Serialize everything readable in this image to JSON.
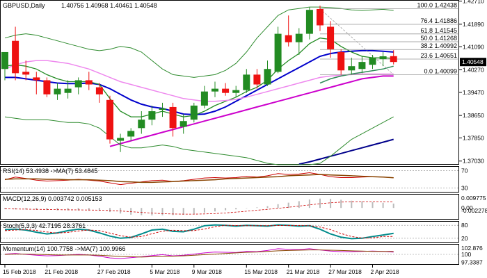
{
  "chart_data": {
    "type": "candlestick",
    "symbol_label": "GBPUSD,Daily",
    "ohlc_label": "1.40756 1.40968 1.40461 1.40548",
    "price_ylim": [
      1.369,
      1.4275
    ],
    "price_ticks": [
      "1.42710",
      "1.41890",
      "1.41090",
      "1.40270",
      "1.39470",
      "1.38650",
      "1.37850",
      "1.37030"
    ],
    "current_price": "1.40548",
    "date_labels": [
      {
        "label": "15 Feb 2018",
        "index": 0
      },
      {
        "label": "21 Feb 2018",
        "index": 4
      },
      {
        "label": "27 Feb 2018",
        "index": 9
      },
      {
        "label": "5 Mar 2018",
        "index": 14
      },
      {
        "label": "9 Mar 2018",
        "index": 18
      },
      {
        "label": "15 Mar 2018",
        "index": 23
      },
      {
        "label": "21 Mar 2018",
        "index": 27
      },
      {
        "label": "27 Mar 2018",
        "index": 31
      },
      {
        "label": "2 Apr 2018",
        "index": 35
      }
    ],
    "candles": [
      {
        "o": 1.403,
        "h": 1.409,
        "l": 1.399,
        "c": 1.409
      },
      {
        "o": 1.413,
        "h": 1.418,
        "l": 1.399,
        "c": 1.4015
      },
      {
        "o": 1.402,
        "h": 1.406,
        "l": 1.399,
        "c": 1.401
      },
      {
        "o": 1.4,
        "h": 1.402,
        "l": 1.394,
        "c": 1.399
      },
      {
        "o": 1.399,
        "h": 1.4,
        "l": 1.393,
        "c": 1.394
      },
      {
        "o": 1.394,
        "h": 1.398,
        "l": 1.392,
        "c": 1.396
      },
      {
        "o": 1.3945,
        "h": 1.399,
        "l": 1.3925,
        "c": 1.396
      },
      {
        "o": 1.3965,
        "h": 1.4,
        "l": 1.394,
        "c": 1.399
      },
      {
        "o": 1.399,
        "h": 1.402,
        "l": 1.3955,
        "c": 1.3975
      },
      {
        "o": 1.3965,
        "h": 1.398,
        "l": 1.391,
        "c": 1.394
      },
      {
        "o": 1.392,
        "h": 1.3935,
        "l": 1.3765,
        "c": 1.378
      },
      {
        "o": 1.3775,
        "h": 1.38,
        "l": 1.3735,
        "c": 1.3785
      },
      {
        "o": 1.379,
        "h": 1.382,
        "l": 1.3775,
        "c": 1.381
      },
      {
        "o": 1.382,
        "h": 1.388,
        "l": 1.38,
        "c": 1.385
      },
      {
        "o": 1.385,
        "h": 1.39,
        "l": 1.383,
        "c": 1.388
      },
      {
        "o": 1.3885,
        "h": 1.391,
        "l": 1.386,
        "c": 1.389
      },
      {
        "o": 1.3895,
        "h": 1.391,
        "l": 1.379,
        "c": 1.382
      },
      {
        "o": 1.3825,
        "h": 1.387,
        "l": 1.38,
        "c": 1.3845
      },
      {
        "o": 1.385,
        "h": 1.391,
        "l": 1.384,
        "c": 1.39
      },
      {
        "o": 1.39,
        "h": 1.397,
        "l": 1.389,
        "c": 1.395
      },
      {
        "o": 1.395,
        "h": 1.3985,
        "l": 1.393,
        "c": 1.396
      },
      {
        "o": 1.396,
        "h": 1.398,
        "l": 1.3935,
        "c": 1.3945
      },
      {
        "o": 1.3945,
        "h": 1.397,
        "l": 1.393,
        "c": 1.3955
      },
      {
        "o": 1.3955,
        "h": 1.403,
        "l": 1.3945,
        "c": 1.401
      },
      {
        "o": 1.401,
        "h": 1.403,
        "l": 1.396,
        "c": 1.3975
      },
      {
        "o": 1.3975,
        "h": 1.406,
        "l": 1.397,
        "c": 1.403
      },
      {
        "o": 1.402,
        "h": 1.418,
        "l": 1.4015,
        "c": 1.4155
      },
      {
        "o": 1.415,
        "h": 1.422,
        "l": 1.411,
        "c": 1.4125
      },
      {
        "o": 1.4125,
        "h": 1.4175,
        "l": 1.408,
        "c": 1.4155
      },
      {
        "o": 1.4155,
        "h": 1.425,
        "l": 1.4135,
        "c": 1.424
      },
      {
        "o": 1.4243,
        "h": 1.4255,
        "l": 1.4165,
        "c": 1.4185
      },
      {
        "o": 1.418,
        "h": 1.42,
        "l": 1.407,
        "c": 1.41
      },
      {
        "o": 1.409,
        "h": 1.41,
        "l": 1.401,
        "c": 1.4025
      },
      {
        "o": 1.4025,
        "h": 1.407,
        "l": 1.401,
        "c": 1.404
      },
      {
        "o": 1.403,
        "h": 1.4075,
        "l": 1.4015,
        "c": 1.4055
      },
      {
        "o": 1.4045,
        "h": 1.408,
        "l": 1.403,
        "c": 1.407
      },
      {
        "o": 1.4065,
        "h": 1.409,
        "l": 1.404,
        "c": 1.4075
      },
      {
        "o": 1.40756,
        "h": 1.40968,
        "l": 1.40461,
        "c": 1.40548
      }
    ],
    "indicator_lines": [
      {
        "color": "#0000cc",
        "width": 2,
        "values": [
          1.4,
          1.4,
          1.3995,
          1.399,
          1.3985,
          1.398,
          1.3978,
          1.3978,
          1.398,
          1.3975,
          1.396,
          1.394,
          1.392,
          1.3905,
          1.3895,
          1.389,
          1.388,
          1.387,
          1.3868,
          1.387,
          1.388,
          1.3895,
          1.3915,
          1.3935,
          1.3955,
          1.3975,
          1.3995,
          1.4015,
          1.4035,
          1.4055,
          1.4075,
          1.4085,
          1.409,
          1.4093,
          1.4095,
          1.4095,
          1.4093,
          1.409
        ]
      },
      {
        "color": "#228b22",
        "width": 1.3,
        "values": [
          1.404,
          1.4045,
          1.404,
          1.403,
          1.401,
          1.3995,
          1.3985,
          1.3985,
          1.3985,
          1.3975,
          1.3925,
          1.388,
          1.386,
          1.386,
          1.387,
          1.388,
          1.387,
          1.386,
          1.3865,
          1.388,
          1.39,
          1.3915,
          1.393,
          1.395,
          1.3965,
          1.399,
          1.403,
          1.406,
          1.4085,
          1.412,
          1.414,
          1.4135,
          1.411,
          1.409,
          1.4075,
          1.407,
          1.407,
          1.4068
        ]
      },
      {
        "color": "#cc00cc",
        "width": 2,
        "values": [
          null,
          null,
          null,
          null,
          null,
          null,
          null,
          null,
          null,
          null,
          1.3755,
          1.3765,
          1.3775,
          1.3785,
          1.3795,
          1.3805,
          1.3815,
          1.3825,
          1.3835,
          1.3845,
          1.3855,
          1.3865,
          1.3875,
          1.3885,
          1.3895,
          1.3905,
          1.3915,
          1.3925,
          1.3935,
          1.3945,
          1.3955,
          1.3965,
          1.3975,
          1.3985,
          1.3995,
          1.4,
          1.4005,
          1.4005
        ]
      },
      {
        "color": "#ee88ee",
        "width": 1.5,
        "values": [
          1.403,
          1.4045,
          1.4055,
          1.406,
          1.406,
          1.4055,
          1.405,
          1.404,
          1.403,
          1.4015,
          1.4,
          1.3985,
          1.3975,
          1.3965,
          1.3955,
          1.3945,
          1.3935,
          1.3925,
          1.392,
          1.3915,
          1.3915,
          1.3918,
          1.3922,
          1.393,
          1.394,
          1.395,
          1.396,
          1.397,
          1.398,
          1.399,
          1.4,
          1.4005,
          1.4008,
          1.401,
          1.4012,
          1.4012,
          1.4012,
          1.4012
        ]
      },
      {
        "color": "#2e8b57",
        "width": 1.5,
        "values": [
          null,
          null,
          null,
          null,
          null,
          null,
          null,
          null,
          null,
          null,
          null,
          null,
          null,
          null,
          null,
          null,
          null,
          null,
          null,
          null,
          null,
          null,
          null,
          null,
          null,
          null,
          null,
          null,
          null,
          null,
          1.398,
          1.3995,
          1.4005,
          1.4012,
          1.4018,
          1.4024,
          1.403,
          1.404
        ]
      },
      {
        "color": "#00008b",
        "width": 2,
        "values": [
          null,
          null,
          null,
          null,
          null,
          null,
          null,
          null,
          null,
          null,
          null,
          null,
          null,
          null,
          null,
          null,
          null,
          null,
          null,
          null,
          null,
          null,
          null,
          null,
          null,
          null,
          null,
          null,
          1.3692,
          1.37,
          1.371,
          1.372,
          1.373,
          1.374,
          1.375,
          1.376,
          1.377,
          1.378
        ]
      },
      {
        "color": "#2e8b2e",
        "width": 1,
        "values": [
          1.414,
          1.415,
          1.4155,
          1.415,
          1.414,
          1.413,
          1.412,
          1.411,
          1.41,
          1.4095,
          1.41,
          1.411,
          1.4105,
          1.409,
          1.406,
          1.403,
          1.401,
          1.4005,
          1.4,
          1.4005,
          1.401,
          1.4025,
          1.405,
          1.409,
          1.414,
          1.418,
          1.422,
          1.424,
          1.4245,
          1.425,
          1.425,
          1.4248,
          1.4245,
          1.424,
          1.4238,
          1.424,
          1.4242,
          1.4238
        ]
      },
      {
        "color": "#2e8b2e",
        "width": 1,
        "values": [
          1.386,
          1.3855,
          1.385,
          1.385,
          1.385,
          1.3845,
          1.384,
          1.384,
          1.3835,
          1.382,
          1.379,
          1.376,
          1.375,
          1.375,
          1.3755,
          1.376,
          1.3755,
          1.3745,
          1.374,
          1.3735,
          1.373,
          1.3725,
          1.372,
          1.3715,
          1.3705,
          1.3695,
          1.369,
          1.369,
          1.369,
          1.369,
          1.3695,
          1.372,
          1.375,
          1.378,
          1.38,
          1.382,
          1.384,
          1.386
        ]
      }
    ],
    "fibonacci": {
      "start_index": 30,
      "end_index": 37,
      "levels": [
        {
          "label": "100.0 1.42438",
          "price": 1.42438
        },
        {
          "label": "76.4 1.41886",
          "price": 1.41886
        },
        {
          "label": "61.8 1.41545",
          "price": 1.41545
        },
        {
          "label": "50.0 1.41268",
          "price": 1.41268
        },
        {
          "label": "38.2 1.40992",
          "price": 1.40992
        },
        {
          "label": "23.6 1.40651",
          "price": 1.40651
        },
        {
          "label": "0.0 1.40099",
          "price": 1.40099
        }
      ]
    },
    "subpanels": [
      {
        "name": "RSI",
        "label": "RSI(14) 53.4938 ->MA(7) 53.4845",
        "ylim": [
          20,
          80
        ],
        "ticks": [
          "70",
          "30"
        ],
        "levels": [
          70,
          30
        ],
        "series": [
          {
            "color": "#cc0000",
            "width": 1,
            "values": [
              49,
              55,
              52,
              48,
              46,
              47,
              48,
              50,
              48,
              46,
              42,
              38,
              41,
              44,
              47,
              48,
              45,
              47,
              50,
              53,
              54,
              53,
              54,
              57,
              55,
              58,
              63,
              61,
              62,
              65,
              61,
              56,
              54,
              54,
              55,
              56,
              55,
              53.49
            ]
          },
          {
            "color": "#884400",
            "width": 1.5,
            "values": [
              50,
              51,
              51,
              51,
              50,
              50,
              49,
              49,
              49,
              48,
              47,
              45,
              44,
              43,
              43,
              44,
              45,
              46,
              47,
              48,
              49,
              51,
              52,
              53,
              54,
              55,
              56,
              58,
              59,
              60,
              61,
              60,
              59,
              58,
              57,
              56,
              55,
              53.48
            ]
          }
        ]
      },
      {
        "name": "MACD",
        "label": "MACD(12,26,9) 0.003742 0.005153",
        "ylim": [
          -0.01,
          0.012
        ],
        "ticks": [
          "0.009775",
          "0.00",
          "-0.002278"
        ],
        "histogram": [
          -0.001,
          -0.0012,
          -0.0014,
          -0.0016,
          -0.0018,
          -0.002,
          -0.0021,
          -0.0022,
          -0.0023,
          -0.0025,
          -0.0035,
          -0.0048,
          -0.0058,
          -0.0062,
          -0.0064,
          -0.0063,
          -0.0061,
          -0.0058,
          -0.005,
          -0.004,
          -0.003,
          -0.002,
          -0.0012,
          -0.0003,
          0.0005,
          0.0015,
          0.0032,
          0.0045,
          0.0058,
          0.0072,
          0.008,
          0.0078,
          0.007,
          0.0062,
          0.0056,
          0.005,
          0.0044,
          0.003742
        ],
        "signal": [
          -0.0008,
          -0.0009,
          -0.001,
          -0.0012,
          -0.0013,
          -0.0015,
          -0.0016,
          -0.0017,
          -0.0018,
          -0.0019,
          -0.0022,
          -0.0026,
          -0.0032,
          -0.0038,
          -0.0044,
          -0.0049,
          -0.0052,
          -0.0053,
          -0.0053,
          -0.0051,
          -0.0048,
          -0.0043,
          -0.0036,
          -0.0028,
          -0.002,
          -0.0012,
          -0.0003,
          0.0006,
          0.0016,
          0.0026,
          0.0036,
          0.0044,
          0.005,
          0.0053,
          0.0054,
          0.0054,
          0.0053,
          0.005153
        ]
      },
      {
        "name": "Stoch",
        "label": "Stoch(5,3,3) 42.7195 28.3761",
        "ylim": [
          0,
          100
        ],
        "ticks": [
          "80",
          "20"
        ],
        "levels": [
          80,
          20
        ],
        "series": [
          {
            "color": "#008b8b",
            "width": 2,
            "values": [
              60,
              62,
              58,
              48,
              40,
              45,
              55,
              62,
              58,
              45,
              30,
              20,
              24,
              40,
              58,
              62,
              52,
              50,
              62,
              78,
              82,
              80,
              76,
              80,
              78,
              76,
              82,
              80,
              76,
              78,
              62,
              40,
              25,
              18,
              20,
              28,
              35,
              42.72
            ]
          },
          {
            "color": "#cc0000",
            "width": 1,
            "dashed": true,
            "values": [
              55,
              58,
              60,
              56,
              49,
              44,
              47,
              54,
              58,
              55,
              44,
              32,
              25,
              28,
              41,
              53,
              57,
              55,
              55,
              63,
              74,
              80,
              79,
              78,
              78,
              78,
              79,
              79,
              79,
              78,
              72,
              60,
              42,
              28,
              21,
              22,
              28,
              28.38
            ]
          }
        ]
      },
      {
        "name": "Momentum",
        "label": "Momentum(14) 100.7758 ->MA(7) 100.9966",
        "ylim": [
          96.5,
          103.5
        ],
        "ticks": [
          "102.876",
          "100",
          "97.3387"
        ],
        "levels": [
          100
        ],
        "series": [
          {
            "color": "#cc00cc",
            "width": 1,
            "values": [
              100.1,
              100.3,
              100.0,
              99.7,
              99.5,
              99.6,
              99.8,
              100.0,
              99.8,
              99.4,
              98.8,
              98.6,
              98.9,
              99.2,
              99.6,
              99.9,
              99.5,
              99.7,
              100.1,
              100.5,
              100.8,
              100.7,
              100.6,
              101.0,
              100.9,
              101.3,
              101.9,
              101.7,
              101.6,
              101.9,
              101.5,
              101.1,
              100.9,
              100.9,
              101.0,
              101.1,
              101.0,
              100.78
            ]
          },
          {
            "color": "#884400",
            "width": 1,
            "values": [
              100.0,
              100.1,
              100.1,
              100.0,
              99.9,
              99.8,
              99.8,
              99.8,
              99.8,
              99.7,
              99.5,
              99.3,
              99.2,
              99.1,
              99.2,
              99.3,
              99.4,
              99.5,
              99.7,
              99.9,
              100.1,
              100.3,
              100.5,
              100.7,
              100.8,
              101.0,
              101.2,
              101.3,
              101.4,
              101.5,
              101.5,
              101.4,
              101.3,
              101.2,
              101.1,
              101.0,
              101.0,
              101.0
            ]
          }
        ]
      }
    ],
    "colors": {
      "bull": "#228b22",
      "bear": "#ee1111",
      "background": "#ffffff",
      "axis": "#000000"
    }
  }
}
